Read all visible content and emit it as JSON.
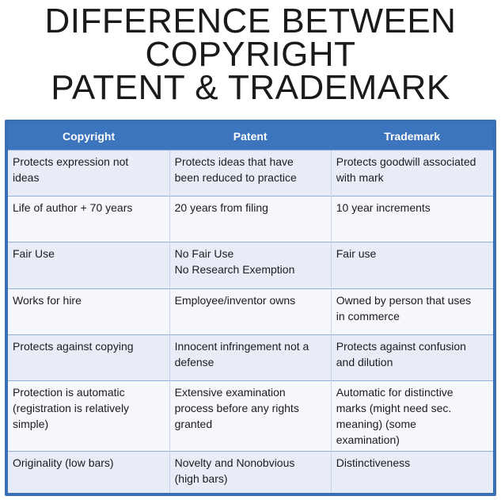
{
  "title": {
    "line1": "DIFFERENCE BETWEEN",
    "line2": "COPYRIGHT",
    "line3": "PATENT & TRADEMARK"
  },
  "table": {
    "headers": [
      "Copyright",
      "Patent",
      "Trademark"
    ],
    "rows": [
      {
        "copyright": [
          "Protects expression not",
          "ideas"
        ],
        "patent": [
          "Protects ideas that have",
          "been reduced to practice"
        ],
        "trademark": [
          "Protects goodwill associated",
          "with mark"
        ]
      },
      {
        "copyright": [
          "Life of author + 70 years"
        ],
        "patent": [
          "20 years from filing"
        ],
        "trademark": [
          "10 year increments"
        ]
      },
      {
        "copyright": [
          "Fair Use"
        ],
        "patent": [
          "No Fair Use",
          "No Research Exemption"
        ],
        "trademark": [
          "Fair use"
        ]
      },
      {
        "copyright": [
          "Works for hire"
        ],
        "patent": [
          "Employee/inventor owns"
        ],
        "trademark": [
          "Owned by person that uses",
          "in commerce"
        ]
      },
      {
        "copyright": [
          "Protects against copying"
        ],
        "patent": [
          "Innocent infringement not a",
          "defense"
        ],
        "trademark": [
          "Protects against confusion",
          "and dilution"
        ]
      },
      {
        "copyright": [
          "Protection is automatic",
          "(registration is relatively",
          "simple)"
        ],
        "patent": [
          "Extensive examination",
          "process before any rights",
          "granted"
        ],
        "trademark": [
          "Automatic for distinctive",
          "marks (might need sec.",
          "meaning) (some",
          "examination)"
        ]
      },
      {
        "copyright": [
          "Originality (low bars)"
        ],
        "patent": [
          "Novelty and Nonobvious",
          "(high bars)"
        ],
        "trademark": [
          "Distinctiveness"
        ]
      }
    ]
  }
}
